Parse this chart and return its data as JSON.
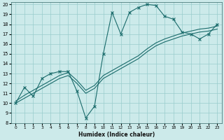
{
  "xlabel": "Humidex (Indice chaleur)",
  "xlim": [
    -0.5,
    23.5
  ],
  "ylim": [
    8,
    20.2
  ],
  "xticks": [
    0,
    1,
    2,
    3,
    4,
    5,
    6,
    7,
    8,
    9,
    10,
    11,
    12,
    13,
    14,
    15,
    16,
    17,
    18,
    19,
    20,
    21,
    22,
    23
  ],
  "yticks": [
    8,
    9,
    10,
    11,
    12,
    13,
    14,
    15,
    16,
    17,
    18,
    19,
    20
  ],
  "bg_color": "#cceaea",
  "line_color": "#1a6b6b",
  "grid_color": "#99cccc",
  "series1_x": [
    0,
    1,
    2,
    3,
    4,
    5,
    6,
    7,
    8,
    9,
    10,
    11,
    12,
    13,
    14,
    15,
    16,
    17,
    18,
    19,
    20,
    21,
    22,
    23
  ],
  "series1_y": [
    10.0,
    11.6,
    10.7,
    12.5,
    13.0,
    13.2,
    13.2,
    11.2,
    8.5,
    9.7,
    15.0,
    19.2,
    17.0,
    19.2,
    19.7,
    20.0,
    19.9,
    18.8,
    18.5,
    17.2,
    17.0,
    16.5,
    17.0,
    18.0
  ],
  "series2_x": [
    0,
    1,
    2,
    3,
    4,
    5,
    6,
    7,
    8,
    9,
    10,
    11,
    12,
    13,
    14,
    15,
    16,
    17,
    18,
    19,
    20,
    21,
    22,
    23
  ],
  "series2_y": [
    10.0,
    10.5,
    11.0,
    11.5,
    12.0,
    12.5,
    12.8,
    12.0,
    11.0,
    11.5,
    12.5,
    13.0,
    13.5,
    14.0,
    14.5,
    15.2,
    15.8,
    16.2,
    16.5,
    16.8,
    17.0,
    17.2,
    17.3,
    17.5
  ],
  "series3_x": [
    0,
    1,
    2,
    3,
    4,
    5,
    6,
    7,
    8,
    9,
    10,
    11,
    12,
    13,
    14,
    15,
    16,
    17,
    18,
    19,
    20,
    21,
    22,
    23
  ],
  "series3_y": [
    10.2,
    10.8,
    11.3,
    11.8,
    12.3,
    12.8,
    13.1,
    12.3,
    11.3,
    11.8,
    12.8,
    13.3,
    13.8,
    14.3,
    14.8,
    15.5,
    16.1,
    16.5,
    16.8,
    17.1,
    17.3,
    17.5,
    17.6,
    17.8
  ]
}
